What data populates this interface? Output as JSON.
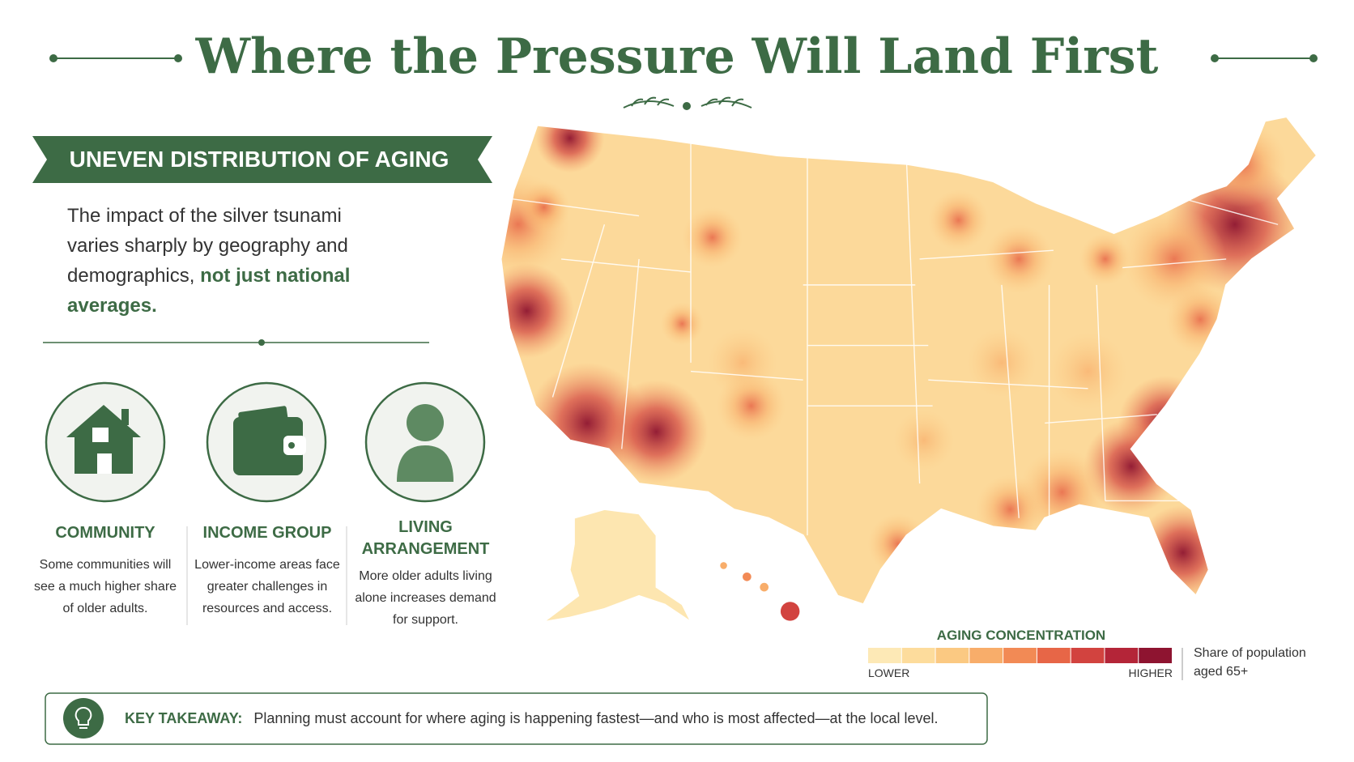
{
  "header": {
    "title": "Where the Pressure Will Land First"
  },
  "section": {
    "banner": "UNEVEN DISTRIBUTION OF AGING",
    "intro": "The impact of the silver tsunami varies sharply by geography and demographics,",
    "intro_emphasis": "not just national averages."
  },
  "cards": [
    {
      "title": "COMMUNITY",
      "description": "Some communities will see a much higher share of older adults."
    },
    {
      "title": "INCOME GROUP",
      "description": "Lower-income areas face greater challenges in resources and access."
    },
    {
      "title": "LIVING ARRANGEMENT",
      "description": "More older adults living alone increases demand for support."
    }
  ],
  "legend": {
    "title": "AGING CONCENTRATION",
    "low": "LOWER",
    "high": "HIGHER",
    "note": "Share of population aged 65+",
    "colors": [
      "#fde9b6",
      "#fddc9c",
      "#fbc982",
      "#f8ad6a",
      "#f28a55",
      "#e76647",
      "#d2433f",
      "#b42538",
      "#8e1430"
    ]
  },
  "takeaway": {
    "label": "KEY TAKEAWAY:",
    "text": "Planning must account for where aging is happening fastest—and who is most affected—at the local level."
  }
}
